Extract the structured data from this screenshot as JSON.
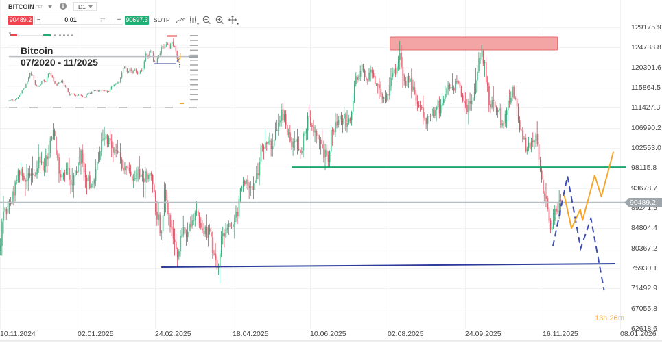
{
  "toolbar": {
    "symbol": "BITCOIN",
    "instrument_type": "CFD",
    "timeframe": "D1",
    "sell_price": "90489.2",
    "volume": "0.01",
    "buy_price": "90697.3",
    "sltp_label": "SL/TP",
    "minus_glyph": "−",
    "plus_glyph": "+",
    "swap_glyph": "⇄",
    "info_glyph": "i",
    "icons": [
      "line-chart-icon",
      "candlestick-icon",
      "zoom-out-icon",
      "zoom-in-icon",
      "crosshair-icon"
    ]
  },
  "colors": {
    "up": "#7fd6b0",
    "up_wick": "#2f9a6c",
    "down": "#f4939c",
    "down_wick": "#d04659",
    "sell": "#f0424f",
    "buy": "#1fae74",
    "price_line": "#b7bdc1",
    "price_tag": "#9ea6ab"
  },
  "inset": {
    "title": "Bitcoin",
    "period": "07/2020 - 11/2025",
    "current_price": 90489.2,
    "monthly_close": [
      11000,
      11700,
      10800,
      13800,
      19700,
      29000,
      33000,
      45000,
      58800,
      57700,
      37300,
      35000,
      41500,
      47100,
      43800,
      61300,
      57000,
      46300,
      38500,
      43200,
      45500,
      37700,
      31800,
      19900,
      23300,
      20000,
      19400,
      20500,
      17200,
      16500,
      23100,
      23100,
      28500,
      29300,
      27200,
      30500,
      29200,
      26000,
      27000,
      34500,
      37700,
      42300,
      42600,
      61200,
      71300,
      60700,
      67500,
      62700,
      64600,
      59000,
      63300,
      70200,
      96400,
      93400,
      102400,
      84400,
      82500,
      94200,
      104600,
      107100,
      115800,
      108200,
      114000,
      109500,
      90500
    ]
  },
  "chart_data": {
    "type": "candlestick",
    "title": "BITCOIN CFD, D1",
    "xlabel": "",
    "ylabel": "",
    "start_date": "10.11.2024",
    "x_ticks": [
      "10.11.2024",
      "02.01.2025",
      "24.02.2025",
      "18.04.2025",
      "10.06.2025",
      "02.08.2025",
      "24.09.2025",
      "16.11.2025",
      "08.01.2026"
    ],
    "x_tick_interval_days": 53,
    "y_ticks": [
      "129175.9",
      "124738.8",
      "120301.6",
      "115864.5",
      "111427.3",
      "106990.2",
      "102553.0",
      "98115.8",
      "93678.7",
      "89241.5",
      "84804.4",
      "80367.2",
      "75930.1",
      "71492.9",
      "67055.8",
      "62618.6"
    ],
    "ylim": [
      62618.6,
      129175.9
    ],
    "grid": true,
    "current_price": 90489.2,
    "current_price_label": "90489.2",
    "close_path": [
      [
        0,
        81000
      ],
      [
        2,
        88500
      ],
      [
        6,
        90500
      ],
      [
        9,
        92000
      ],
      [
        12,
        97500
      ],
      [
        16,
        95500
      ],
      [
        19,
        97000
      ],
      [
        23,
        96500
      ],
      [
        26,
        100500
      ],
      [
        29,
        97500
      ],
      [
        33,
        101500
      ],
      [
        36,
        106500
      ],
      [
        38,
        101000
      ],
      [
        41,
        96000
      ],
      [
        45,
        98000
      ],
      [
        49,
        94500
      ],
      [
        52,
        97000
      ],
      [
        55,
        102000
      ],
      [
        58,
        96000
      ],
      [
        62,
        94500
      ],
      [
        66,
        99500
      ],
      [
        70,
        104500
      ],
      [
        72,
        105500
      ],
      [
        76,
        102500
      ],
      [
        80,
        101500
      ],
      [
        84,
        97500
      ],
      [
        89,
        96500
      ],
      [
        93,
        97500
      ],
      [
        97,
        96000
      ],
      [
        101,
        96500
      ],
      [
        104,
        94500
      ],
      [
        106,
        88500
      ],
      [
        110,
        84000
      ],
      [
        112,
        93500
      ],
      [
        114,
        88000
      ],
      [
        117,
        84500
      ],
      [
        121,
        78500
      ],
      [
        124,
        83500
      ],
      [
        128,
        84000
      ],
      [
        131,
        86500
      ],
      [
        135,
        87500
      ],
      [
        139,
        83500
      ],
      [
        143,
        84000
      ],
      [
        146,
        79000
      ],
      [
        149,
        76500
      ],
      [
        151,
        83000
      ],
      [
        154,
        84500
      ],
      [
        158,
        85000
      ],
      [
        162,
        87500
      ],
      [
        164,
        93500
      ],
      [
        167,
        94500
      ],
      [
        171,
        94000
      ],
      [
        176,
        96500
      ],
      [
        178,
        103000
      ],
      [
        183,
        104000
      ],
      [
        186,
        103000
      ],
      [
        189,
        106500
      ],
      [
        192,
        111000
      ],
      [
        195,
        107500
      ],
      [
        198,
        104000
      ],
      [
        202,
        104500
      ],
      [
        205,
        101500
      ],
      [
        208,
        106000
      ],
      [
        211,
        109500
      ],
      [
        214,
        106000
      ],
      [
        217,
        104500
      ],
      [
        220,
        102500
      ],
      [
        224,
        99500
      ],
      [
        226,
        106500
      ],
      [
        230,
        107500
      ],
      [
        234,
        109000
      ],
      [
        237,
        108000
      ],
      [
        240,
        110500
      ],
      [
        242,
        116500
      ],
      [
        245,
        118500
      ],
      [
        247,
        121000
      ],
      [
        250,
        117500
      ],
      [
        254,
        119000
      ],
      [
        258,
        116500
      ],
      [
        261,
        113500
      ],
      [
        264,
        114500
      ],
      [
        267,
        118000
      ],
      [
        271,
        120500
      ],
      [
        273,
        123500
      ],
      [
        275,
        118500
      ],
      [
        279,
        117000
      ],
      [
        283,
        114500
      ],
      [
        287,
        111500
      ],
      [
        290,
        109000
      ],
      [
        293,
        109500
      ],
      [
        297,
        111000
      ],
      [
        301,
        112000
      ],
      [
        305,
        115500
      ],
      [
        309,
        116000
      ],
      [
        312,
        117000
      ],
      [
        315,
        114000
      ],
      [
        317,
        112500
      ],
      [
        319,
        110500
      ],
      [
        322,
        113000
      ],
      [
        325,
        117500
      ],
      [
        327,
        122500
      ],
      [
        329,
        124000
      ],
      [
        331,
        121500
      ],
      [
        334,
        112000
      ],
      [
        337,
        113000
      ],
      [
        340,
        111000
      ],
      [
        343,
        108000
      ],
      [
        345,
        110000
      ],
      [
        347,
        113000
      ],
      [
        350,
        116000
      ],
      [
        352,
        113500
      ],
      [
        354,
        108500
      ],
      [
        357,
        104500
      ],
      [
        360,
        102500
      ],
      [
        363,
        104000
      ],
      [
        366,
        105500
      ],
      [
        368,
        100000
      ],
      [
        370,
        95500
      ],
      [
        372,
        92000
      ],
      [
        374,
        89000
      ],
      [
        376,
        84500
      ],
      [
        378,
        86500
      ],
      [
        380,
        88500
      ],
      [
        382,
        91000
      ],
      [
        383,
        90489.2
      ]
    ],
    "annotations": {
      "resistance_zone": {
        "from_day": 266.7,
        "to_day": 381.2,
        "low": 124184,
        "high": 127058,
        "fill": "#f29a9a",
        "stroke": "#e66a6a"
      },
      "support_green": {
        "from_day": 199.5,
        "to_day": 428,
        "price": 98300,
        "color": "#1aa86b"
      },
      "support_blue": {
        "from": [
          110.3,
          76231
        ],
        "to": [
          420.7,
          76987
        ],
        "color": "#2e3b9a"
      },
      "projection_blue_dashed": {
        "points": [
          [
            378,
            80770
          ],
          [
            388,
            96305
          ],
          [
            397,
            80361
          ],
          [
            404,
            86972
          ],
          [
            413,
            71088
          ]
        ],
        "color": "#3d4db3"
      },
      "projection_orange": {
        "points": [
          [
            385.8,
            92115
          ],
          [
            390.7,
            84808
          ],
          [
            396.7,
            88938
          ],
          [
            398.3,
            86563
          ],
          [
            406.6,
            96502
          ],
          [
            411.1,
            91767
          ],
          [
            419.4,
            101690
          ]
        ],
        "color": "#f5a52b"
      }
    },
    "countdown": {
      "hours": "13",
      "h_unit": "h",
      "minutes": "26",
      "m_unit": "m"
    }
  }
}
